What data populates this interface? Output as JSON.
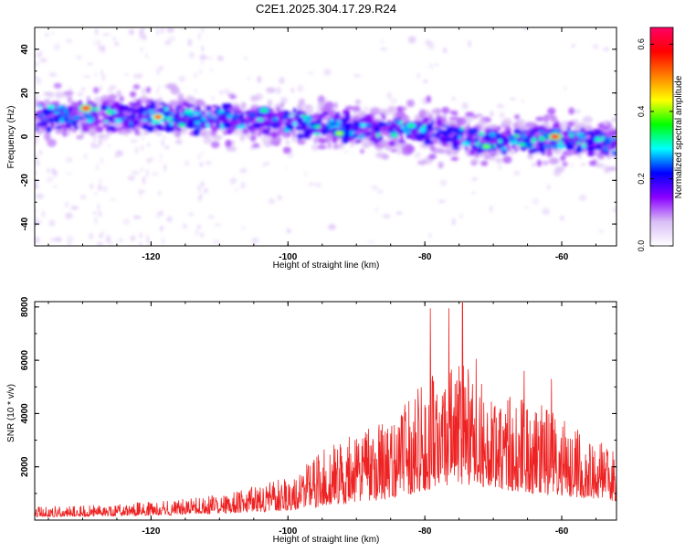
{
  "title": "C2E1.2025.304.17.29.R24",
  "chart_data": [
    {
      "type": "heatmap",
      "name": "spectrogram",
      "xlabel": "Height of straight line (km)",
      "ylabel": "Frequency (Hz)",
      "xlim": [
        -137,
        -52
      ],
      "ylim": [
        -50,
        50
      ],
      "xticks": [
        -120,
        -100,
        -80,
        -60
      ],
      "yticks": [
        -40,
        -20,
        0,
        20,
        40
      ],
      "band_center_line": [
        {
          "x": -137,
          "y": 10
        },
        {
          "x": -120,
          "y": 9
        },
        {
          "x": -110,
          "y": 8
        },
        {
          "x": -100,
          "y": 6
        },
        {
          "x": -90,
          "y": 4
        },
        {
          "x": -80,
          "y": 2
        },
        {
          "x": -70,
          "y": -2
        },
        {
          "x": -60,
          "y": -1
        },
        {
          "x": -52,
          "y": -3
        }
      ],
      "peaks": [
        {
          "x": -129.5,
          "y": 13,
          "amplitude": 0.62
        },
        {
          "x": -119,
          "y": 9,
          "amplitude": 0.58
        },
        {
          "x": -103.5,
          "y": 12,
          "amplitude": 0.35
        },
        {
          "x": -92.5,
          "y": 1.5,
          "amplitude": 0.42
        },
        {
          "x": -82,
          "y": 5,
          "amplitude": 0.36
        },
        {
          "x": -71,
          "y": -4.5,
          "amplitude": 0.4
        },
        {
          "x": -61,
          "y": 0,
          "amplitude": 0.63
        }
      ],
      "colorbar": {
        "label": "Normalized spectral amplitude",
        "range": [
          0.0,
          0.65
        ],
        "ticks": [
          "0.0",
          "0.2",
          "0.4",
          "0.6"
        ],
        "colors": [
          "#ffffff",
          "#d9bdf5",
          "#8a00ff",
          "#0000ff",
          "#00ffff",
          "#00ff00",
          "#ffff00",
          "#ff7f00",
          "#ff0000",
          "#ff0066"
        ]
      }
    },
    {
      "type": "line",
      "name": "snr",
      "xlabel": "Height of straight line (km)",
      "ylabel": "SNR (10 * v/v)",
      "xlim": [
        -137,
        -52
      ],
      "ylim": [
        0,
        8200
      ],
      "xticks": [
        -120,
        -100,
        -80,
        -60
      ],
      "yticks": [
        2000,
        4000,
        6000,
        8000
      ],
      "color": "#ee2222",
      "envelope": [
        {
          "x": -137,
          "base": 120,
          "amp": 400
        },
        {
          "x": -125,
          "base": 150,
          "amp": 450
        },
        {
          "x": -115,
          "base": 200,
          "amp": 600
        },
        {
          "x": -108,
          "base": 250,
          "amp": 800
        },
        {
          "x": -100,
          "base": 350,
          "amp": 1300
        },
        {
          "x": -95,
          "base": 500,
          "amp": 2200
        },
        {
          "x": -90,
          "base": 650,
          "amp": 2600
        },
        {
          "x": -85,
          "base": 800,
          "amp": 3000
        },
        {
          "x": -80,
          "base": 1100,
          "amp": 4200
        },
        {
          "x": -75,
          "base": 1300,
          "amp": 4800
        },
        {
          "x": -70,
          "base": 1200,
          "amp": 3600
        },
        {
          "x": -65,
          "base": 1000,
          "amp": 3600
        },
        {
          "x": -60,
          "base": 900,
          "amp": 3000
        },
        {
          "x": -55,
          "base": 800,
          "amp": 2200
        },
        {
          "x": -52,
          "base": 700,
          "amp": 2000
        }
      ],
      "spikes": [
        {
          "x": -79.2,
          "y": 7950
        },
        {
          "x": -76.5,
          "y": 7950
        },
        {
          "x": -74.5,
          "y": 8150
        },
        {
          "x": -72.5,
          "y": 6050
        },
        {
          "x": -65.5,
          "y": 5600
        },
        {
          "x": -61.5,
          "y": 5300
        }
      ]
    }
  ]
}
